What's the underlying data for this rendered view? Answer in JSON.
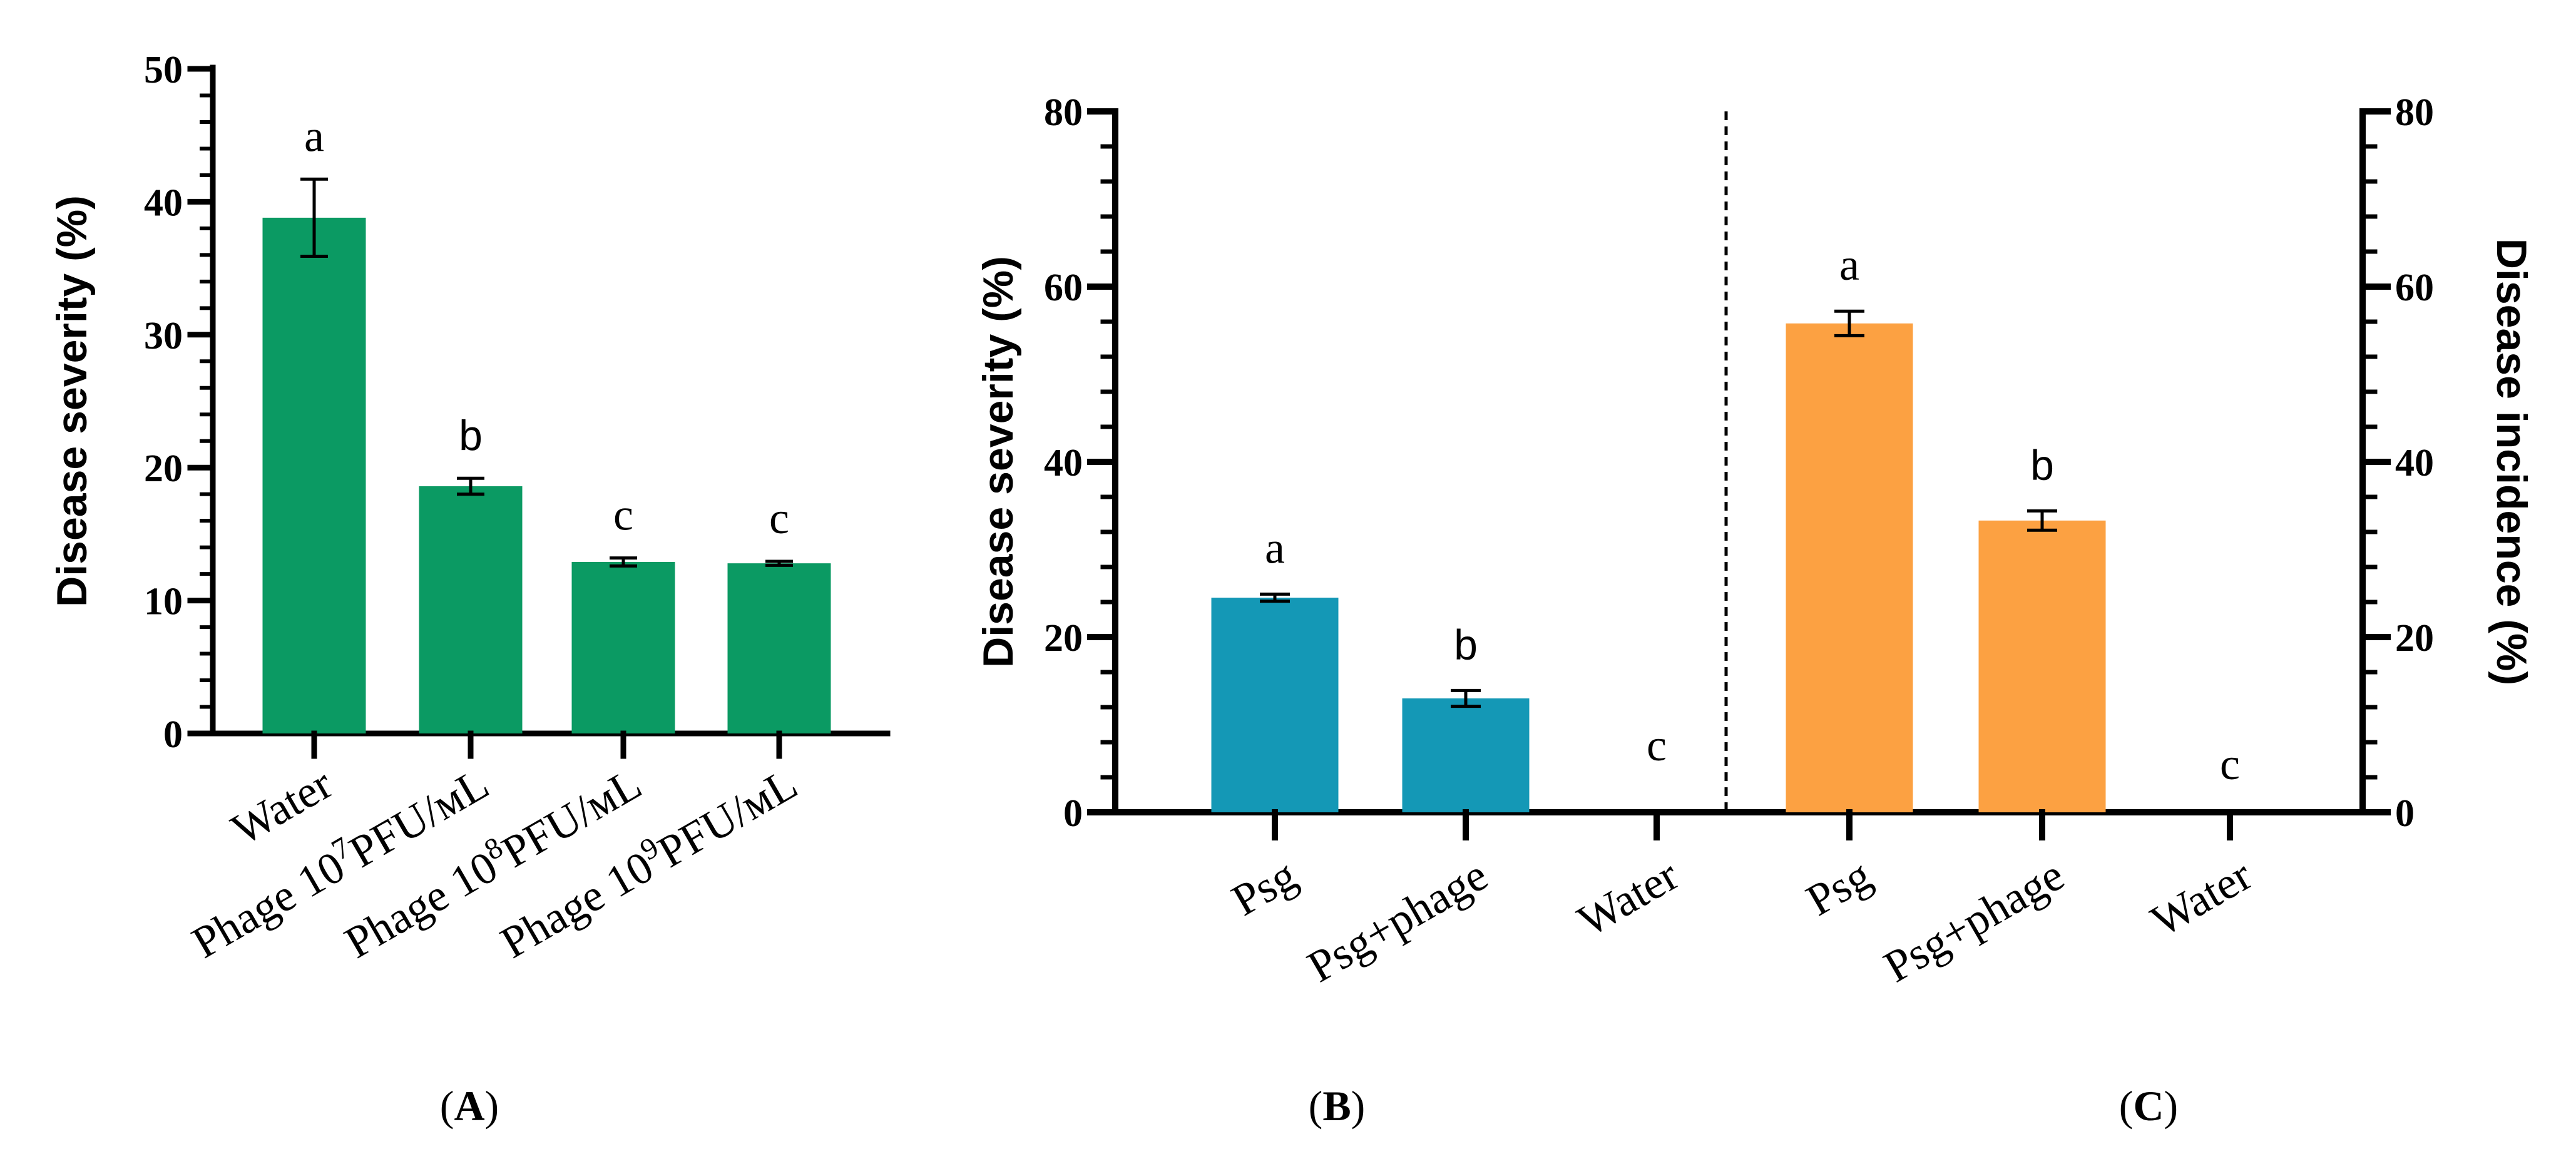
{
  "colors": {
    "green": "#0b9a63",
    "teal": "#1498b6",
    "orange": "#fca142"
  },
  "chart_data": [
    {
      "panel": "(A)",
      "type": "bar",
      "ylabel": "Disease severity (%)",
      "ylim": [
        0,
        50
      ],
      "yticks": [
        0,
        10,
        20,
        30,
        40,
        50
      ],
      "categories": [
        {
          "label": "Water",
          "pre": "Water",
          "sup": "",
          "post": ""
        },
        {
          "label": "Phage 10^7PFU/mL",
          "pre": "Phage 10",
          "sup": "7",
          "post": "PFU/ᴍL"
        },
        {
          "label": "Phage 10^8PFU/mL",
          "pre": "Phage 10",
          "sup": "8",
          "post": "PFU/ᴍL"
        },
        {
          "label": "Phage 10^9PFU/mL",
          "pre": "Phage 10",
          "sup": "9",
          "post": "PFU/ᴍL"
        }
      ],
      "values": [
        38.8,
        18.6,
        12.9,
        12.8
      ],
      "errors": [
        2.9,
        0.6,
        0.3,
        0.15
      ],
      "letters": [
        "a",
        "b",
        "c",
        "c"
      ],
      "color": "#0b9a63"
    },
    {
      "panel": "(B)",
      "type": "bar",
      "ylabel": "Disease severity (%)",
      "ylim": [
        0,
        80
      ],
      "yticks": [
        0,
        20,
        40,
        60,
        80
      ],
      "categories": [
        "Psg",
        "Psg+phage",
        "Water"
      ],
      "values": [
        24.5,
        13.0,
        0
      ],
      "errors": [
        0.4,
        0.9,
        0
      ],
      "letters": [
        "a",
        "b",
        "c"
      ],
      "color": "#1498b6"
    },
    {
      "panel": "(C)",
      "type": "bar",
      "ylabel": "Disease incidence (%)",
      "ylim": [
        0,
        80
      ],
      "yticks": [
        0,
        20,
        40,
        60,
        80
      ],
      "categories": [
        "Psg",
        "Psg+phage",
        "Water"
      ],
      "values": [
        55.8,
        33.3,
        0
      ],
      "errors": [
        1.4,
        1.1,
        0
      ],
      "letters": [
        "a",
        "b",
        "c"
      ],
      "color": "#fca142"
    }
  ]
}
